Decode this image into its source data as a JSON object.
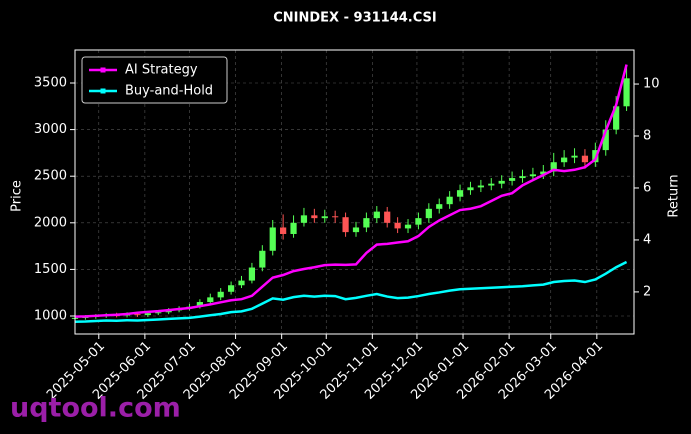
{
  "chart_data": {
    "type": "candlestick",
    "title": "CNINDEX - 931144.CSI",
    "ylabel": "Price",
    "y2label": "Return",
    "watermark": "uqtool.com",
    "x": [
      "2025-04-15",
      "2025-04-22",
      "2025-04-29",
      "2025-05-06",
      "2025-05-13",
      "2025-05-20",
      "2025-05-27",
      "2025-06-03",
      "2025-06-10",
      "2025-06-17",
      "2025-06-24",
      "2025-07-01",
      "2025-07-08",
      "2025-07-15",
      "2025-07-22",
      "2025-07-29",
      "2025-08-05",
      "2025-08-12",
      "2025-08-19",
      "2025-08-26",
      "2025-09-02",
      "2025-09-09",
      "2025-09-16",
      "2025-09-23",
      "2025-09-30",
      "2025-10-07",
      "2025-10-14",
      "2025-10-21",
      "2025-10-28",
      "2025-11-04",
      "2025-11-11",
      "2025-11-18",
      "2025-11-25",
      "2025-12-02",
      "2025-12-09",
      "2025-12-16",
      "2025-12-23",
      "2025-12-30",
      "2026-01-06",
      "2026-01-13",
      "2026-01-20",
      "2026-01-27",
      "2026-02-03",
      "2026-02-10",
      "2026-02-17",
      "2026-02-24",
      "2026-03-03",
      "2026-03-10",
      "2026-03-17",
      "2026-03-24",
      "2026-03-31",
      "2026-04-07",
      "2026-04-14",
      "2026-04-21"
    ],
    "open": [
      970,
      980,
      990,
      1000,
      1010,
      1005,
      1020,
      1010,
      1030,
      1040,
      1060,
      1080,
      1100,
      1150,
      1200,
      1260,
      1330,
      1380,
      1520,
      1700,
      1950,
      1880,
      2000,
      2080,
      2050,
      2070,
      2060,
      1900,
      1950,
      2050,
      2120,
      2000,
      1940,
      1980,
      2050,
      2150,
      2200,
      2280,
      2350,
      2380,
      2400,
      2420,
      2450,
      2480,
      2500,
      2520,
      2550,
      2650,
      2700,
      2720,
      2650,
      2780,
      3000,
      3250
    ],
    "high": [
      1000,
      1010,
      1020,
      1030,
      1035,
      1040,
      1040,
      1050,
      1060,
      1085,
      1105,
      1130,
      1180,
      1240,
      1300,
      1370,
      1430,
      1570,
      1760,
      2030,
      2090,
      2080,
      2160,
      2150,
      2140,
      2130,
      2110,
      2010,
      2110,
      2180,
      2170,
      2060,
      2040,
      2110,
      2210,
      2260,
      2340,
      2410,
      2440,
      2460,
      2480,
      2510,
      2550,
      2570,
      2590,
      2620,
      2750,
      2780,
      2800,
      2790,
      2860,
      3100,
      3360,
      3680
    ],
    "low": [
      950,
      960,
      970,
      980,
      985,
      985,
      990,
      990,
      1010,
      1020,
      1040,
      1060,
      1080,
      1120,
      1170,
      1230,
      1300,
      1350,
      1480,
      1650,
      1820,
      1840,
      1960,
      2000,
      2000,
      2000,
      1850,
      1850,
      1900,
      2000,
      1950,
      1890,
      1890,
      1930,
      2000,
      2100,
      2150,
      2230,
      2300,
      2330,
      2350,
      2370,
      2400,
      2430,
      2450,
      2470,
      2500,
      2600,
      2640,
      2580,
      2600,
      2720,
      2950,
      3200
    ],
    "close": [
      980,
      990,
      1000,
      1010,
      1005,
      1020,
      1010,
      1030,
      1040,
      1060,
      1080,
      1100,
      1150,
      1200,
      1260,
      1330,
      1380,
      1520,
      1700,
      1950,
      1880,
      2000,
      2080,
      2050,
      2070,
      2060,
      1900,
      1950,
      2050,
      2120,
      2000,
      1940,
      1980,
      2050,
      2150,
      2200,
      2280,
      2350,
      2380,
      2400,
      2420,
      2450,
      2480,
      2500,
      2520,
      2550,
      2650,
      2700,
      2720,
      2650,
      2780,
      3000,
      3250,
      3550
    ],
    "up_color": "#55ff55",
    "down_color": "#ff5555",
    "series": [
      {
        "name": "AI Strategy",
        "color": "#ff00ff",
        "axis": "y2",
        "values": [
          1.05,
          1.06,
          1.08,
          1.1,
          1.12,
          1.15,
          1.2,
          1.23,
          1.26,
          1.3,
          1.34,
          1.38,
          1.45,
          1.52,
          1.6,
          1.68,
          1.72,
          1.85,
          2.2,
          2.55,
          2.65,
          2.8,
          2.88,
          2.95,
          3.03,
          3.05,
          3.04,
          3.06,
          3.5,
          3.82,
          3.85,
          3.9,
          3.95,
          4.15,
          4.5,
          4.75,
          4.95,
          5.15,
          5.2,
          5.3,
          5.5,
          5.7,
          5.8,
          6.1,
          6.3,
          6.5,
          6.7,
          6.65,
          6.7,
          6.8,
          7.1,
          8.2,
          9.2,
          10.75
        ]
      },
      {
        "name": "Buy-and-Hold",
        "color": "#00ffff",
        "axis": "y2",
        "values": [
          0.85,
          0.86,
          0.88,
          0.9,
          0.89,
          0.91,
          0.9,
          0.92,
          0.94,
          0.96,
          0.98,
          1.0,
          1.05,
          1.1,
          1.15,
          1.22,
          1.25,
          1.35,
          1.55,
          1.75,
          1.7,
          1.8,
          1.85,
          1.82,
          1.85,
          1.84,
          1.72,
          1.77,
          1.85,
          1.92,
          1.82,
          1.76,
          1.78,
          1.84,
          1.92,
          1.98,
          2.05,
          2.1,
          2.12,
          2.14,
          2.16,
          2.18,
          2.2,
          2.22,
          2.25,
          2.28,
          2.38,
          2.42,
          2.44,
          2.38,
          2.48,
          2.7,
          2.95,
          3.15
        ]
      }
    ],
    "xlim": [
      "2025-04-15",
      "2026-04-26"
    ],
    "xticks": [
      "2025-05-01",
      "2025-06-01",
      "2025-07-01",
      "2025-08-01",
      "2025-09-01",
      "2025-10-01",
      "2025-11-01",
      "2025-12-01",
      "2026-01-01",
      "2026-02-01",
      "2026-03-01",
      "2026-04-01"
    ],
    "ylim": [
      807,
      3854
    ],
    "yticks": [
      1000,
      1500,
      2000,
      2500,
      3000,
      3500
    ],
    "y2lim": [
      0.38,
      11.31
    ],
    "y2ticks": [
      2,
      4,
      6,
      8,
      10
    ],
    "grid": true,
    "legend": "upper left"
  }
}
